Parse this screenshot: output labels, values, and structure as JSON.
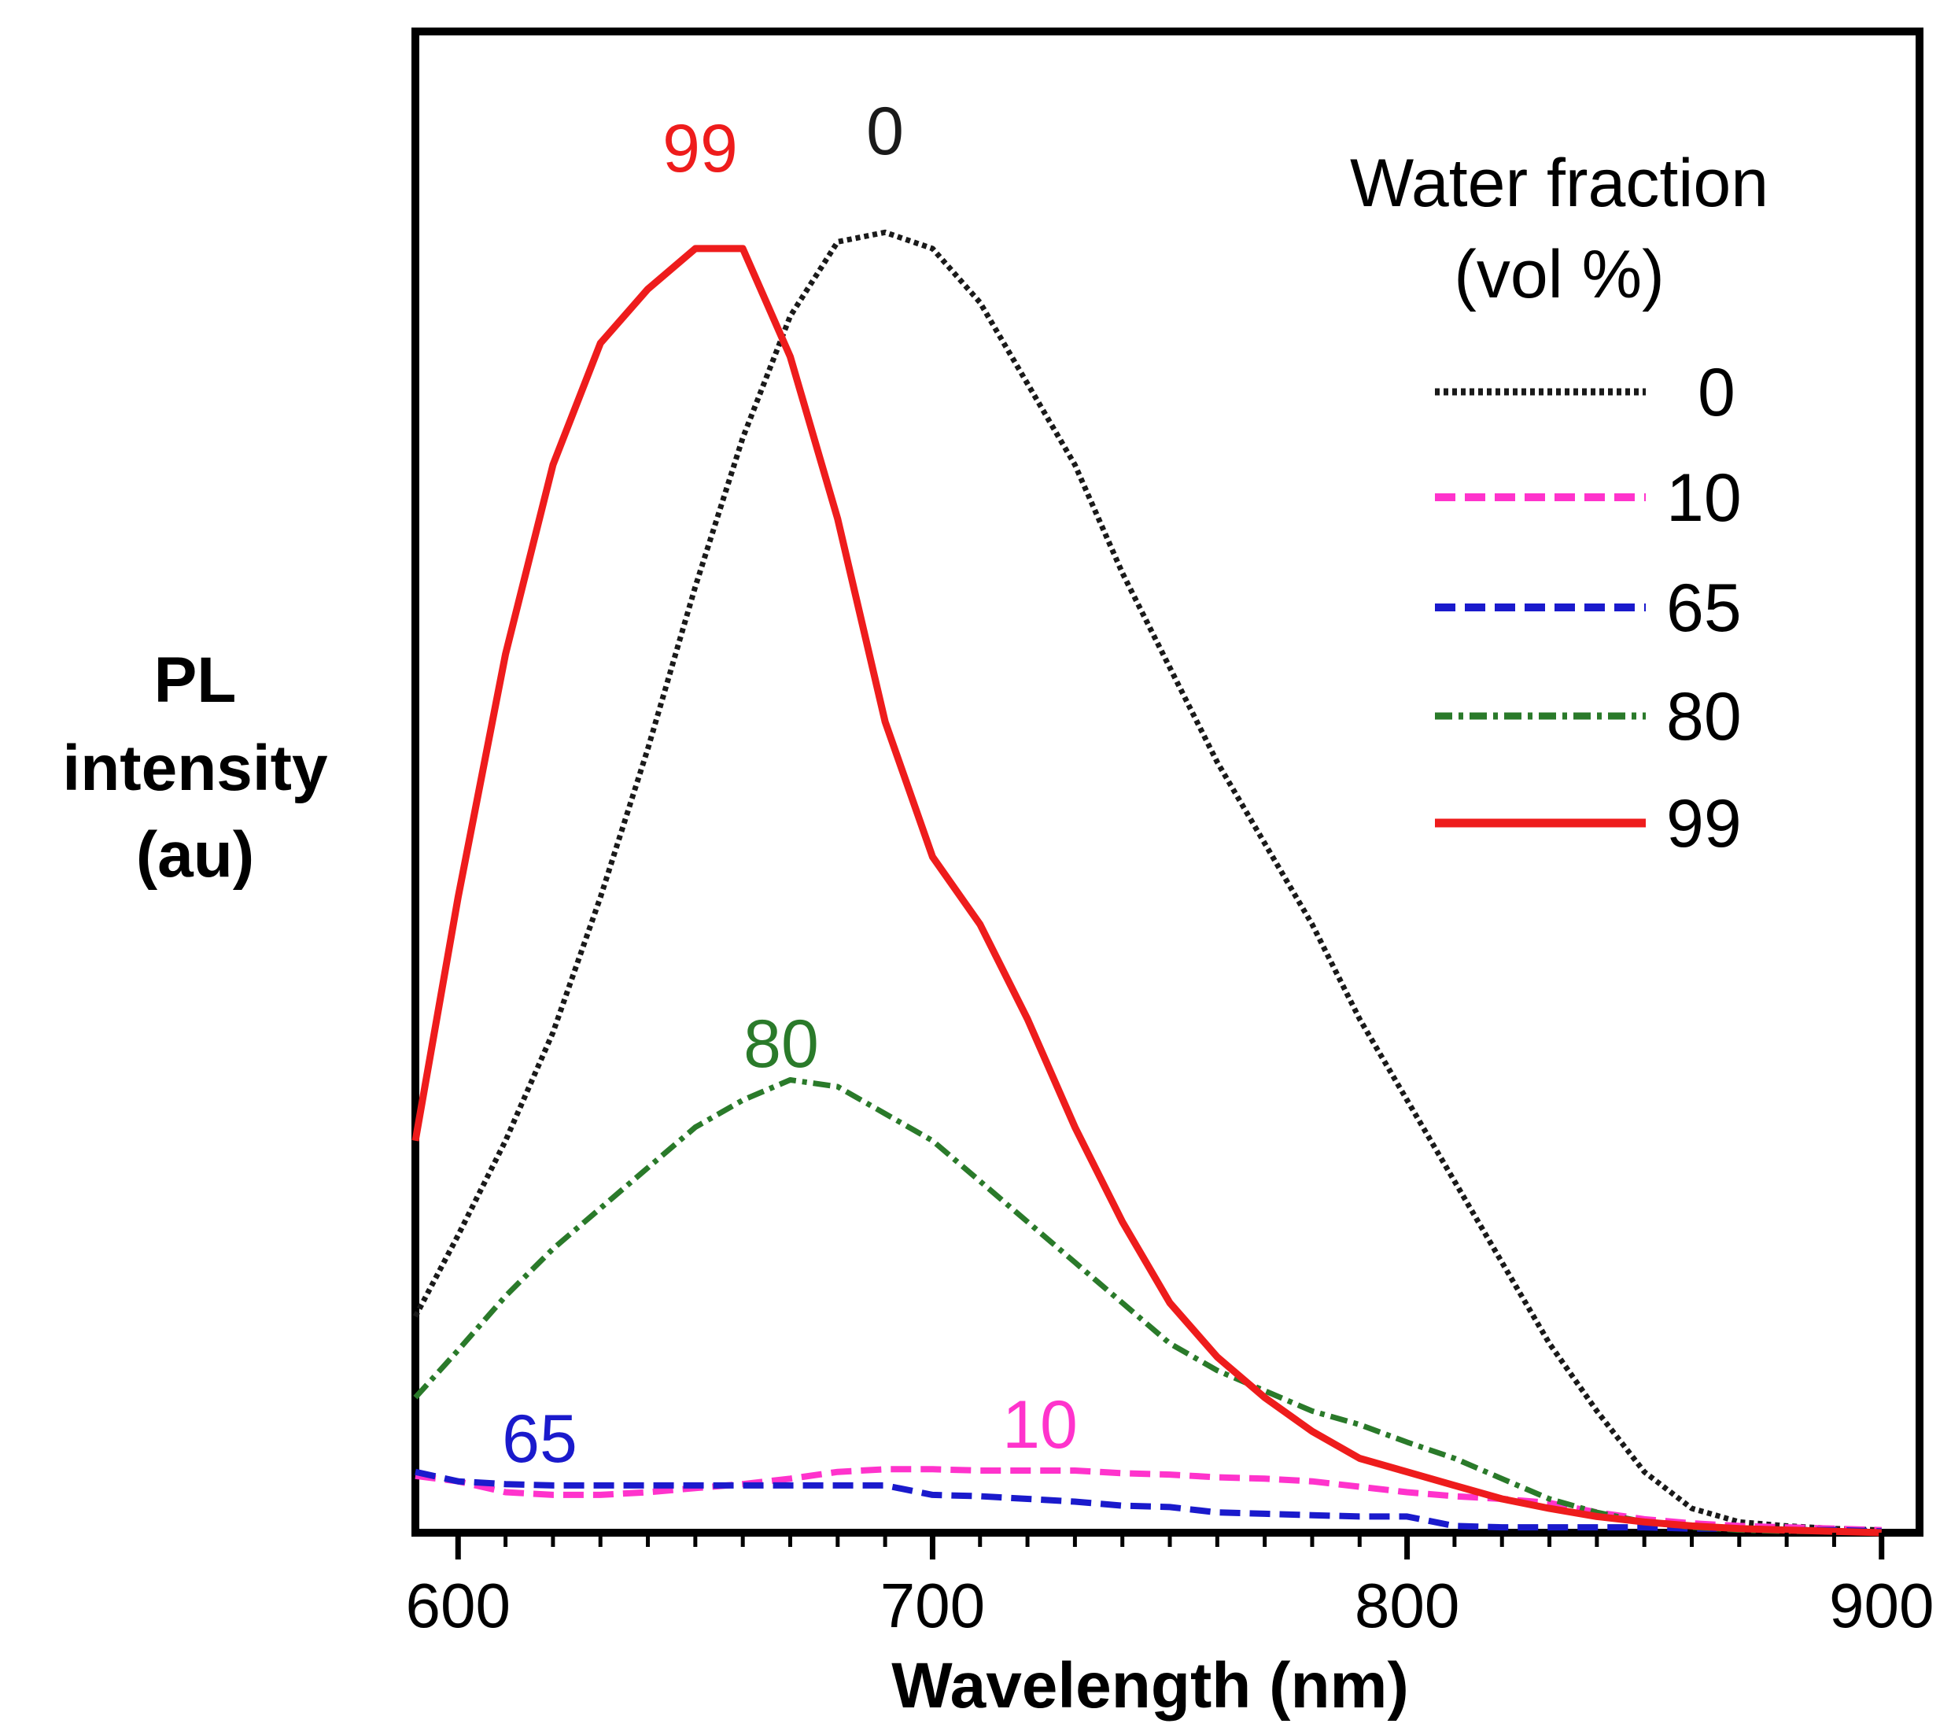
{
  "chart_data": {
    "type": "line",
    "title": "",
    "xlabel": "Wavelength (nm)",
    "ylabel_lines": [
      "PL",
      "intensity",
      "(au)"
    ],
    "xlim": [
      591,
      908
    ],
    "ylim": [
      0,
      1.0
    ],
    "xticks": [
      600,
      700,
      800,
      900
    ],
    "xtick_labels": [
      "600",
      "700",
      "800",
      "900"
    ],
    "grid": false,
    "legend": {
      "placement": "top-right",
      "title_lines": [
        "Water fraction",
        "(vol %)"
      ],
      "entries": [
        "0",
        "10",
        "65",
        "80",
        "99"
      ]
    },
    "series": [
      {
        "name": "0",
        "color": "#1a1a1a",
        "dash": "dotted",
        "peak_label": "0",
        "x": [
          591,
          600,
          610,
          620,
          630,
          640,
          650,
          660,
          670,
          680,
          690,
          700,
          710,
          720,
          730,
          740,
          750,
          760,
          770,
          780,
          790,
          800,
          810,
          820,
          830,
          840,
          850,
          860,
          870,
          880,
          890,
          900
        ],
        "y": [
          0.16,
          0.22,
          0.29,
          0.37,
          0.47,
          0.58,
          0.7,
          0.81,
          0.9,
          0.955,
          0.962,
          0.95,
          0.91,
          0.85,
          0.79,
          0.71,
          0.64,
          0.57,
          0.51,
          0.45,
          0.38,
          0.32,
          0.26,
          0.2,
          0.14,
          0.09,
          0.045,
          0.018,
          0.008,
          0.005,
          0.003,
          0.002
        ]
      },
      {
        "name": "10",
        "color": "#ff33cc",
        "dash": "dashed",
        "peak_label": "10",
        "x": [
          591,
          600,
          610,
          620,
          630,
          640,
          650,
          660,
          670,
          680,
          690,
          700,
          710,
          720,
          730,
          740,
          750,
          760,
          770,
          780,
          790,
          800,
          810,
          820,
          830,
          840,
          850,
          860,
          870,
          880,
          890,
          900
        ],
        "y": [
          0.042,
          0.038,
          0.03,
          0.028,
          0.028,
          0.03,
          0.033,
          0.036,
          0.04,
          0.045,
          0.047,
          0.047,
          0.046,
          0.046,
          0.046,
          0.044,
          0.043,
          0.041,
          0.04,
          0.038,
          0.034,
          0.03,
          0.027,
          0.025,
          0.022,
          0.015,
          0.01,
          0.007,
          0.005,
          0.004,
          0.003,
          0.002
        ]
      },
      {
        "name": "65",
        "color": "#1a1acc",
        "dash": "dashed",
        "peak_label": "65",
        "x": [
          591,
          600,
          610,
          620,
          630,
          640,
          650,
          660,
          670,
          680,
          690,
          700,
          710,
          720,
          730,
          740,
          750,
          760,
          770,
          780,
          790,
          800,
          810,
          820,
          830,
          840,
          850,
          860,
          870,
          880,
          890,
          900
        ],
        "y": [
          0.045,
          0.038,
          0.036,
          0.035,
          0.035,
          0.035,
          0.035,
          0.035,
          0.035,
          0.035,
          0.035,
          0.028,
          0.027,
          0.025,
          0.023,
          0.02,
          0.019,
          0.015,
          0.014,
          0.013,
          0.012,
          0.012,
          0.005,
          0.004,
          0.004,
          0.004,
          0.004,
          0.003,
          0.003,
          0.002,
          0.002,
          0.001
        ]
      },
      {
        "name": "80",
        "color": "#2a7a2a",
        "dash": "dotdash",
        "peak_label": "80",
        "x": [
          591,
          600,
          610,
          620,
          630,
          640,
          650,
          660,
          670,
          680,
          690,
          700,
          710,
          720,
          730,
          740,
          750,
          760,
          770,
          780,
          790,
          800,
          810,
          820,
          830,
          840,
          850,
          860,
          870,
          880,
          890,
          900
        ],
        "y": [
          0.1,
          0.135,
          0.175,
          0.21,
          0.24,
          0.27,
          0.3,
          0.32,
          0.335,
          0.33,
          0.31,
          0.29,
          0.26,
          0.23,
          0.2,
          0.17,
          0.14,
          0.12,
          0.105,
          0.09,
          0.08,
          0.067,
          0.055,
          0.04,
          0.025,
          0.015,
          0.008,
          0.004,
          0.002,
          0.001,
          0.001,
          0.0
        ]
      },
      {
        "name": "99",
        "color": "#ee1c1c",
        "dash": "solid",
        "peak_label": "99",
        "x": [
          591,
          600,
          610,
          620,
          630,
          640,
          650,
          660,
          670,
          680,
          690,
          700,
          710,
          720,
          730,
          740,
          750,
          760,
          770,
          780,
          790,
          800,
          810,
          820,
          830,
          840,
          850,
          860,
          870,
          880,
          890,
          900
        ],
        "y": [
          0.29,
          0.47,
          0.65,
          0.79,
          0.88,
          0.92,
          0.95,
          0.95,
          0.87,
          0.75,
          0.6,
          0.5,
          0.45,
          0.38,
          0.3,
          0.23,
          0.17,
          0.13,
          0.1,
          0.075,
          0.055,
          0.045,
          0.035,
          0.025,
          0.018,
          0.012,
          0.008,
          0.005,
          0.003,
          0.002,
          0.001,
          0.0
        ]
      }
    ]
  }
}
